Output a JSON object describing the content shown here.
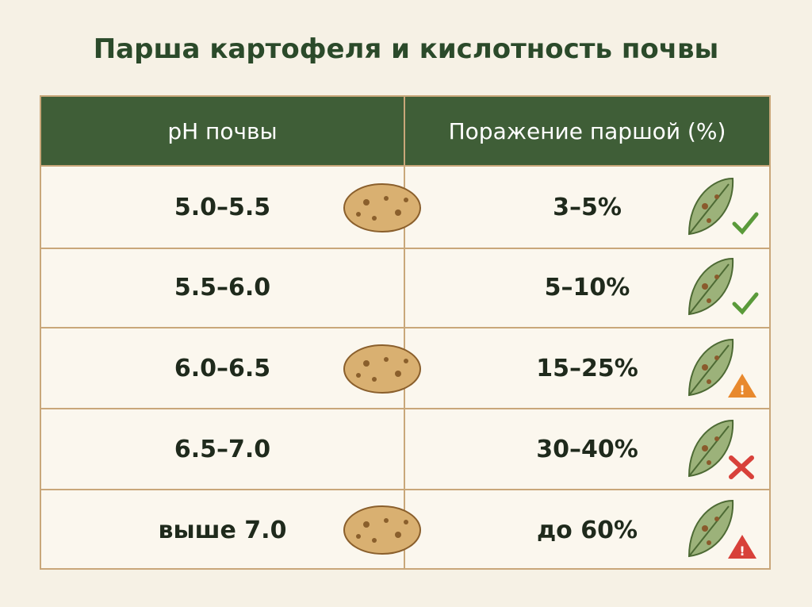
{
  "title": "Парша картофеля и кислотность почвы",
  "table": {
    "header": [
      "pH почвы",
      "Поражение паршой (%)"
    ],
    "rows": [
      [
        "5.0–5.5",
        "3–5%"
      ],
      [
        "5.5–6.0",
        "5–10%"
      ],
      [
        "6.0–6.5",
        "15–25%"
      ],
      [
        "6.5–7.0",
        "30–40%"
      ],
      [
        "выше 7.0",
        "до 60%"
      ]
    ]
  }
}
